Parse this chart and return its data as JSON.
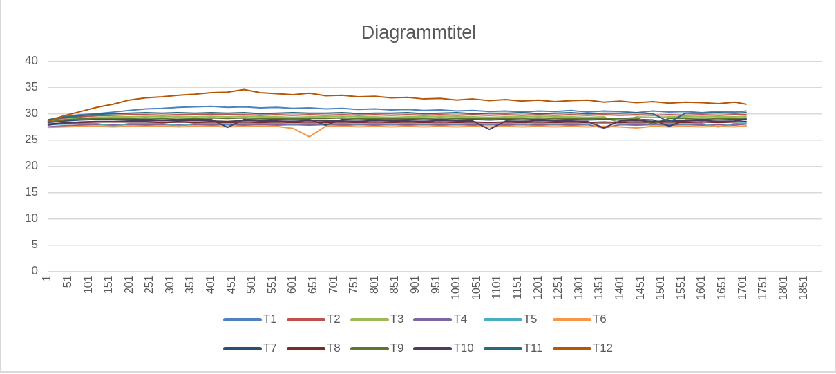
{
  "chart_data": {
    "type": "line",
    "title": "Diagrammtitel",
    "x": [
      1,
      41,
      81,
      121,
      161,
      201,
      241,
      281,
      321,
      361,
      401,
      441,
      481,
      521,
      561,
      601,
      641,
      681,
      721,
      761,
      801,
      841,
      881,
      921,
      961,
      1001,
      1041,
      1081,
      1121,
      1161,
      1201,
      1241,
      1281,
      1321,
      1361,
      1401,
      1441,
      1481,
      1521,
      1561,
      1601,
      1641,
      1681,
      1709
    ],
    "xlim": [
      1,
      1895
    ],
    "xticks": [
      1,
      51,
      101,
      151,
      201,
      251,
      301,
      351,
      401,
      451,
      501,
      551,
      601,
      651,
      701,
      751,
      801,
      851,
      901,
      951,
      1001,
      1051,
      1101,
      1151,
      1201,
      1251,
      1301,
      1351,
      1401,
      1451,
      1501,
      1551,
      1601,
      1651,
      1701,
      1751,
      1801,
      1851
    ],
    "ylim": [
      0,
      40
    ],
    "yticks": [
      0,
      5,
      10,
      15,
      20,
      25,
      30,
      35,
      40
    ],
    "grid": "y",
    "legend": "bottom",
    "series": [
      {
        "name": "T1",
        "color": "#4f81bd",
        "values": [
          28.8,
          29.5,
          29.8,
          30.0,
          30.3,
          30.6,
          30.9,
          31.0,
          31.2,
          31.3,
          31.4,
          31.2,
          31.3,
          31.1,
          31.2,
          31.0,
          31.1,
          30.9,
          31.0,
          30.8,
          30.9,
          30.7,
          30.8,
          30.6,
          30.7,
          30.5,
          30.6,
          30.4,
          30.5,
          30.3,
          30.5,
          30.4,
          30.6,
          30.3,
          30.5,
          30.4,
          30.2,
          30.5,
          30.3,
          30.4,
          30.2,
          30.4,
          30.3,
          30.5
        ]
      },
      {
        "name": "T2",
        "color": "#c0504d",
        "values": [
          28.6,
          29.1,
          29.4,
          29.6,
          29.7,
          29.8,
          29.8,
          29.7,
          29.8,
          29.8,
          29.9,
          29.8,
          29.8,
          29.7,
          29.8,
          29.7,
          29.8,
          29.7,
          29.8,
          29.7,
          29.8,
          29.7,
          29.8,
          29.7,
          29.8,
          29.7,
          29.8,
          29.7,
          29.8,
          29.7,
          29.8,
          29.7,
          29.8,
          29.7,
          29.8,
          29.7,
          29.8,
          29.7,
          29.8,
          29.7,
          29.8,
          29.7,
          29.8,
          29.8
        ]
      },
      {
        "name": "T3",
        "color": "#9bbb59",
        "values": [
          28.5,
          28.9,
          29.1,
          29.3,
          29.4,
          29.4,
          29.5,
          29.4,
          29.5,
          29.4,
          29.5,
          29.4,
          29.5,
          29.4,
          29.4,
          29.3,
          29.4,
          29.4,
          29.5,
          29.4,
          29.4,
          29.3,
          29.4,
          29.4,
          29.5,
          29.4,
          29.4,
          29.3,
          29.4,
          29.4,
          29.5,
          29.4,
          29.4,
          29.3,
          29.4,
          28.2,
          29.4,
          29.3,
          29.4,
          29.4,
          29.5,
          29.4,
          29.4,
          29.5
        ]
      },
      {
        "name": "T4",
        "color": "#8064a2",
        "values": [
          27.5,
          27.7,
          27.8,
          27.9,
          27.8,
          27.9,
          27.8,
          27.9,
          27.8,
          27.9,
          27.8,
          27.9,
          27.8,
          27.9,
          27.8,
          27.9,
          27.8,
          27.9,
          27.8,
          27.9,
          27.8,
          27.9,
          27.8,
          27.9,
          27.8,
          27.9,
          27.8,
          27.9,
          27.8,
          27.9,
          27.8,
          27.9,
          27.8,
          27.9,
          27.3,
          27.9,
          27.8,
          27.9,
          27.8,
          27.9,
          27.8,
          27.9,
          27.8,
          28.0
        ]
      },
      {
        "name": "T5",
        "color": "#4bacc6",
        "values": [
          27.9,
          28.0,
          28.1,
          28.1,
          27.6,
          28.1,
          28.1,
          28.1,
          27.7,
          28.1,
          28.1,
          28.0,
          28.1,
          28.1,
          28.1,
          28.0,
          28.1,
          28.0,
          28.1,
          28.0,
          28.1,
          28.0,
          28.1,
          28.0,
          28.1,
          28.0,
          28.1,
          28.0,
          28.1,
          28.0,
          28.1,
          28.0,
          28.1,
          28.0,
          28.1,
          28.0,
          28.1,
          28.0,
          28.1,
          28.0,
          28.1,
          27.5,
          28.1,
          28.2
        ]
      },
      {
        "name": "T6",
        "color": "#f79646",
        "values": [
          27.4,
          27.5,
          27.6,
          27.6,
          27.5,
          27.6,
          27.6,
          27.6,
          27.5,
          27.6,
          27.6,
          27.5,
          27.6,
          27.6,
          27.6,
          27.2,
          25.6,
          27.6,
          27.6,
          27.5,
          27.6,
          27.5,
          27.6,
          27.5,
          27.6,
          27.5,
          27.6,
          27.5,
          27.6,
          27.5,
          27.6,
          27.5,
          27.6,
          27.5,
          27.6,
          27.5,
          27.3,
          27.6,
          27.5,
          27.6,
          27.5,
          27.6,
          27.5,
          27.7
        ]
      },
      {
        "name": "T7",
        "color": "#2c4d75",
        "values": [
          28.3,
          28.6,
          28.8,
          28.9,
          28.9,
          28.9,
          28.9,
          28.8,
          28.9,
          28.9,
          28.9,
          27.4,
          28.9,
          28.8,
          28.9,
          28.8,
          28.9,
          27.8,
          28.9,
          28.8,
          28.9,
          28.8,
          28.9,
          28.8,
          28.9,
          28.8,
          28.9,
          28.8,
          28.9,
          28.8,
          28.9,
          28.8,
          28.9,
          28.8,
          28.9,
          28.8,
          28.9,
          28.8,
          27.6,
          28.8,
          28.9,
          28.8,
          28.9,
          29.0
        ]
      },
      {
        "name": "T8",
        "color": "#772c2a",
        "values": [
          28.0,
          28.2,
          28.3,
          28.4,
          28.4,
          28.4,
          28.4,
          28.3,
          28.4,
          28.3,
          28.4,
          28.3,
          28.4,
          28.3,
          28.4,
          28.3,
          28.4,
          28.3,
          28.4,
          28.3,
          28.4,
          28.3,
          28.4,
          28.3,
          28.4,
          28.3,
          28.4,
          28.3,
          28.4,
          28.3,
          28.4,
          28.3,
          28.4,
          28.3,
          28.4,
          28.3,
          28.4,
          28.3,
          28.4,
          28.3,
          28.4,
          28.3,
          28.4,
          28.5
        ]
      },
      {
        "name": "T9",
        "color": "#5f7530",
        "values": [
          28.4,
          28.8,
          29.0,
          29.1,
          29.1,
          29.1,
          29.2,
          29.1,
          29.2,
          29.1,
          29.2,
          29.1,
          29.2,
          29.1,
          29.1,
          29.0,
          29.1,
          29.1,
          29.2,
          29.1,
          29.1,
          29.0,
          29.1,
          29.1,
          29.2,
          29.1,
          29.1,
          29.0,
          29.1,
          29.1,
          29.2,
          29.1,
          29.1,
          29.0,
          29.1,
          29.1,
          29.2,
          28.0,
          29.1,
          29.1,
          29.2,
          29.1,
          29.1,
          29.2
        ]
      },
      {
        "name": "T10",
        "color": "#4d3b62",
        "values": [
          27.8,
          28.2,
          28.4,
          28.5,
          28.5,
          28.6,
          28.6,
          28.7,
          28.6,
          28.7,
          28.6,
          28.5,
          28.7,
          28.6,
          28.6,
          28.5,
          28.7,
          28.6,
          28.6,
          28.5,
          28.7,
          28.6,
          28.6,
          28.5,
          28.7,
          28.6,
          28.6,
          27.0,
          28.6,
          28.5,
          28.7,
          28.6,
          28.6,
          28.5,
          27.3,
          28.6,
          28.7,
          28.5,
          28.6,
          28.6,
          28.7,
          28.5,
          28.6,
          28.9
        ]
      },
      {
        "name": "T11",
        "color": "#276a7c",
        "values": [
          28.8,
          29.3,
          29.6,
          29.9,
          30.0,
          30.1,
          30.2,
          30.1,
          30.2,
          30.1,
          30.2,
          30.1,
          30.2,
          30.0,
          30.1,
          30.2,
          30.1,
          30.1,
          30.2,
          30.0,
          30.1,
          30.1,
          30.2,
          30.0,
          30.1,
          30.2,
          30.0,
          30.1,
          30.1,
          30.2,
          30.0,
          30.1,
          30.2,
          30.0,
          30.1,
          30.1,
          30.2,
          30.0,
          28.4,
          30.1,
          30.1,
          30.2,
          30.1,
          30.2
        ]
      },
      {
        "name": "T12",
        "color": "#b65708",
        "values": [
          28.5,
          29.6,
          30.4,
          31.2,
          31.8,
          32.6,
          33.0,
          33.2,
          33.5,
          33.7,
          34.0,
          34.1,
          34.6,
          34.0,
          33.8,
          33.6,
          33.9,
          33.4,
          33.5,
          33.2,
          33.3,
          33.0,
          33.1,
          32.8,
          32.9,
          32.6,
          32.8,
          32.5,
          32.7,
          32.4,
          32.6,
          32.3,
          32.5,
          32.6,
          32.2,
          32.4,
          32.1,
          32.3,
          32.0,
          32.2,
          32.1,
          31.9,
          32.2,
          31.8
        ]
      }
    ]
  }
}
